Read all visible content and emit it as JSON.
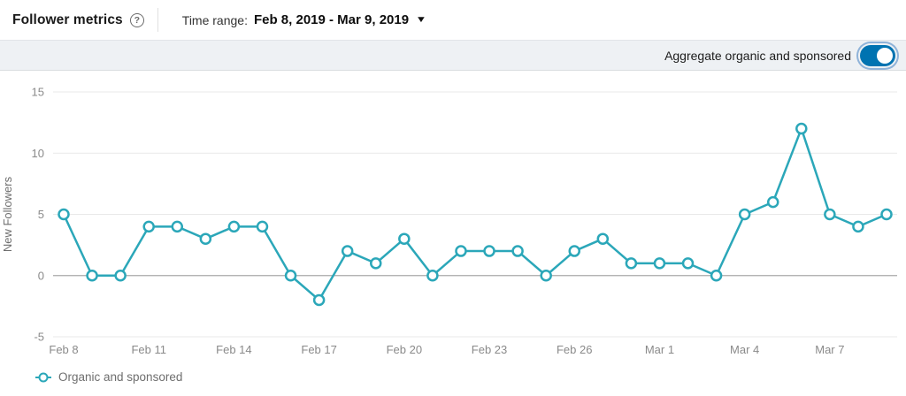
{
  "header": {
    "title": "Follower metrics",
    "help_glyph": "?",
    "time_range_label": "Time range:",
    "time_range_value": "Feb 8, 2019 - Mar 9, 2019",
    "caret_glyph": "▼"
  },
  "toolbar": {
    "aggregate_label": "Aggregate organic and sponsored",
    "toggle_state": "on"
  },
  "colors": {
    "series_teal": "#2ba7b9",
    "toggle_blue": "#0073b1",
    "grid_light": "#e9e9e9",
    "grid_zero": "#a8a8a8",
    "tick_text": "#8a8a8a",
    "axis_text": "#6e6e6e"
  },
  "chart_data": {
    "type": "line",
    "title": "",
    "xlabel": "",
    "ylabel": "New Followers",
    "x": [
      "Feb 8",
      "Feb 9",
      "Feb 10",
      "Feb 11",
      "Feb 12",
      "Feb 13",
      "Feb 14",
      "Feb 15",
      "Feb 16",
      "Feb 17",
      "Feb 18",
      "Feb 19",
      "Feb 20",
      "Feb 21",
      "Feb 22",
      "Feb 23",
      "Feb 24",
      "Feb 25",
      "Feb 26",
      "Feb 27",
      "Feb 28",
      "Mar 1",
      "Mar 2",
      "Mar 3",
      "Mar 4",
      "Mar 5",
      "Mar 6",
      "Mar 7",
      "Mar 8",
      "Mar 9"
    ],
    "series": [
      {
        "name": "Organic and sponsored",
        "values": [
          5,
          0,
          0,
          4,
          4,
          3,
          4,
          4,
          0,
          -2,
          2,
          1,
          3,
          0,
          2,
          2,
          2,
          0,
          2,
          3,
          1,
          1,
          1,
          0,
          5,
          6,
          12,
          5,
          4,
          5
        ]
      }
    ],
    "ylim": [
      -5,
      15
    ],
    "yticks": [
      15,
      10,
      5,
      0,
      -5
    ],
    "xtick_labels": [
      "Feb 8",
      "Feb 11",
      "Feb 14",
      "Feb 17",
      "Feb 20",
      "Feb 23",
      "Feb 26",
      "Mar 1",
      "Mar 4",
      "Mar 7"
    ],
    "xtick_every": 3,
    "grid": true,
    "legend_position": "bottom-left"
  },
  "legend": {
    "label": "Organic and sponsored"
  }
}
